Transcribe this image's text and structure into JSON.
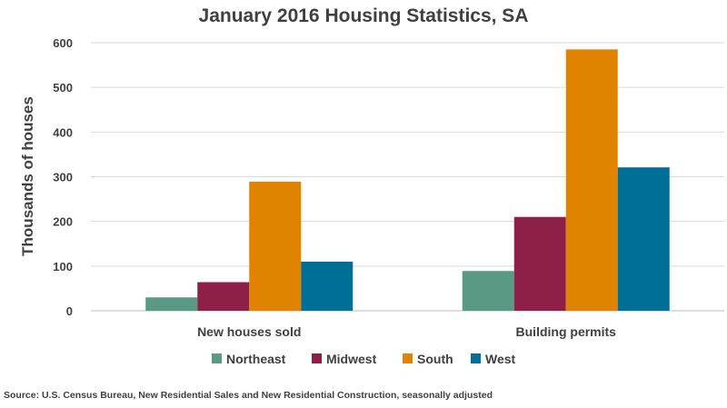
{
  "chart_data": {
    "type": "bar",
    "title": "January 2016 Housing Statistics, SA",
    "xlabel": "",
    "ylabel": "Thousands of houses",
    "ylim": [
      0,
      600
    ],
    "yticks": [
      "0",
      "100",
      "200",
      "300",
      "400",
      "500",
      "600"
    ],
    "grid": true,
    "legend_position": "bottom",
    "categories": [
      "New houses sold",
      "Building permits"
    ],
    "series": [
      {
        "name": "Northeast",
        "color": "#5a9a84",
        "values": [
          30,
          89
        ]
      },
      {
        "name": "Midwest",
        "color": "#8e1f49",
        "values": [
          64,
          210
        ]
      },
      {
        "name": "South",
        "color": "#e08300",
        "values": [
          289,
          585
        ]
      },
      {
        "name": "West",
        "color": "#006f96",
        "values": [
          110,
          321
        ]
      }
    ]
  },
  "source_note": "Source: U.S. Census Bureau, New Residential Sales and New Residential Construction, seasonally adjusted"
}
